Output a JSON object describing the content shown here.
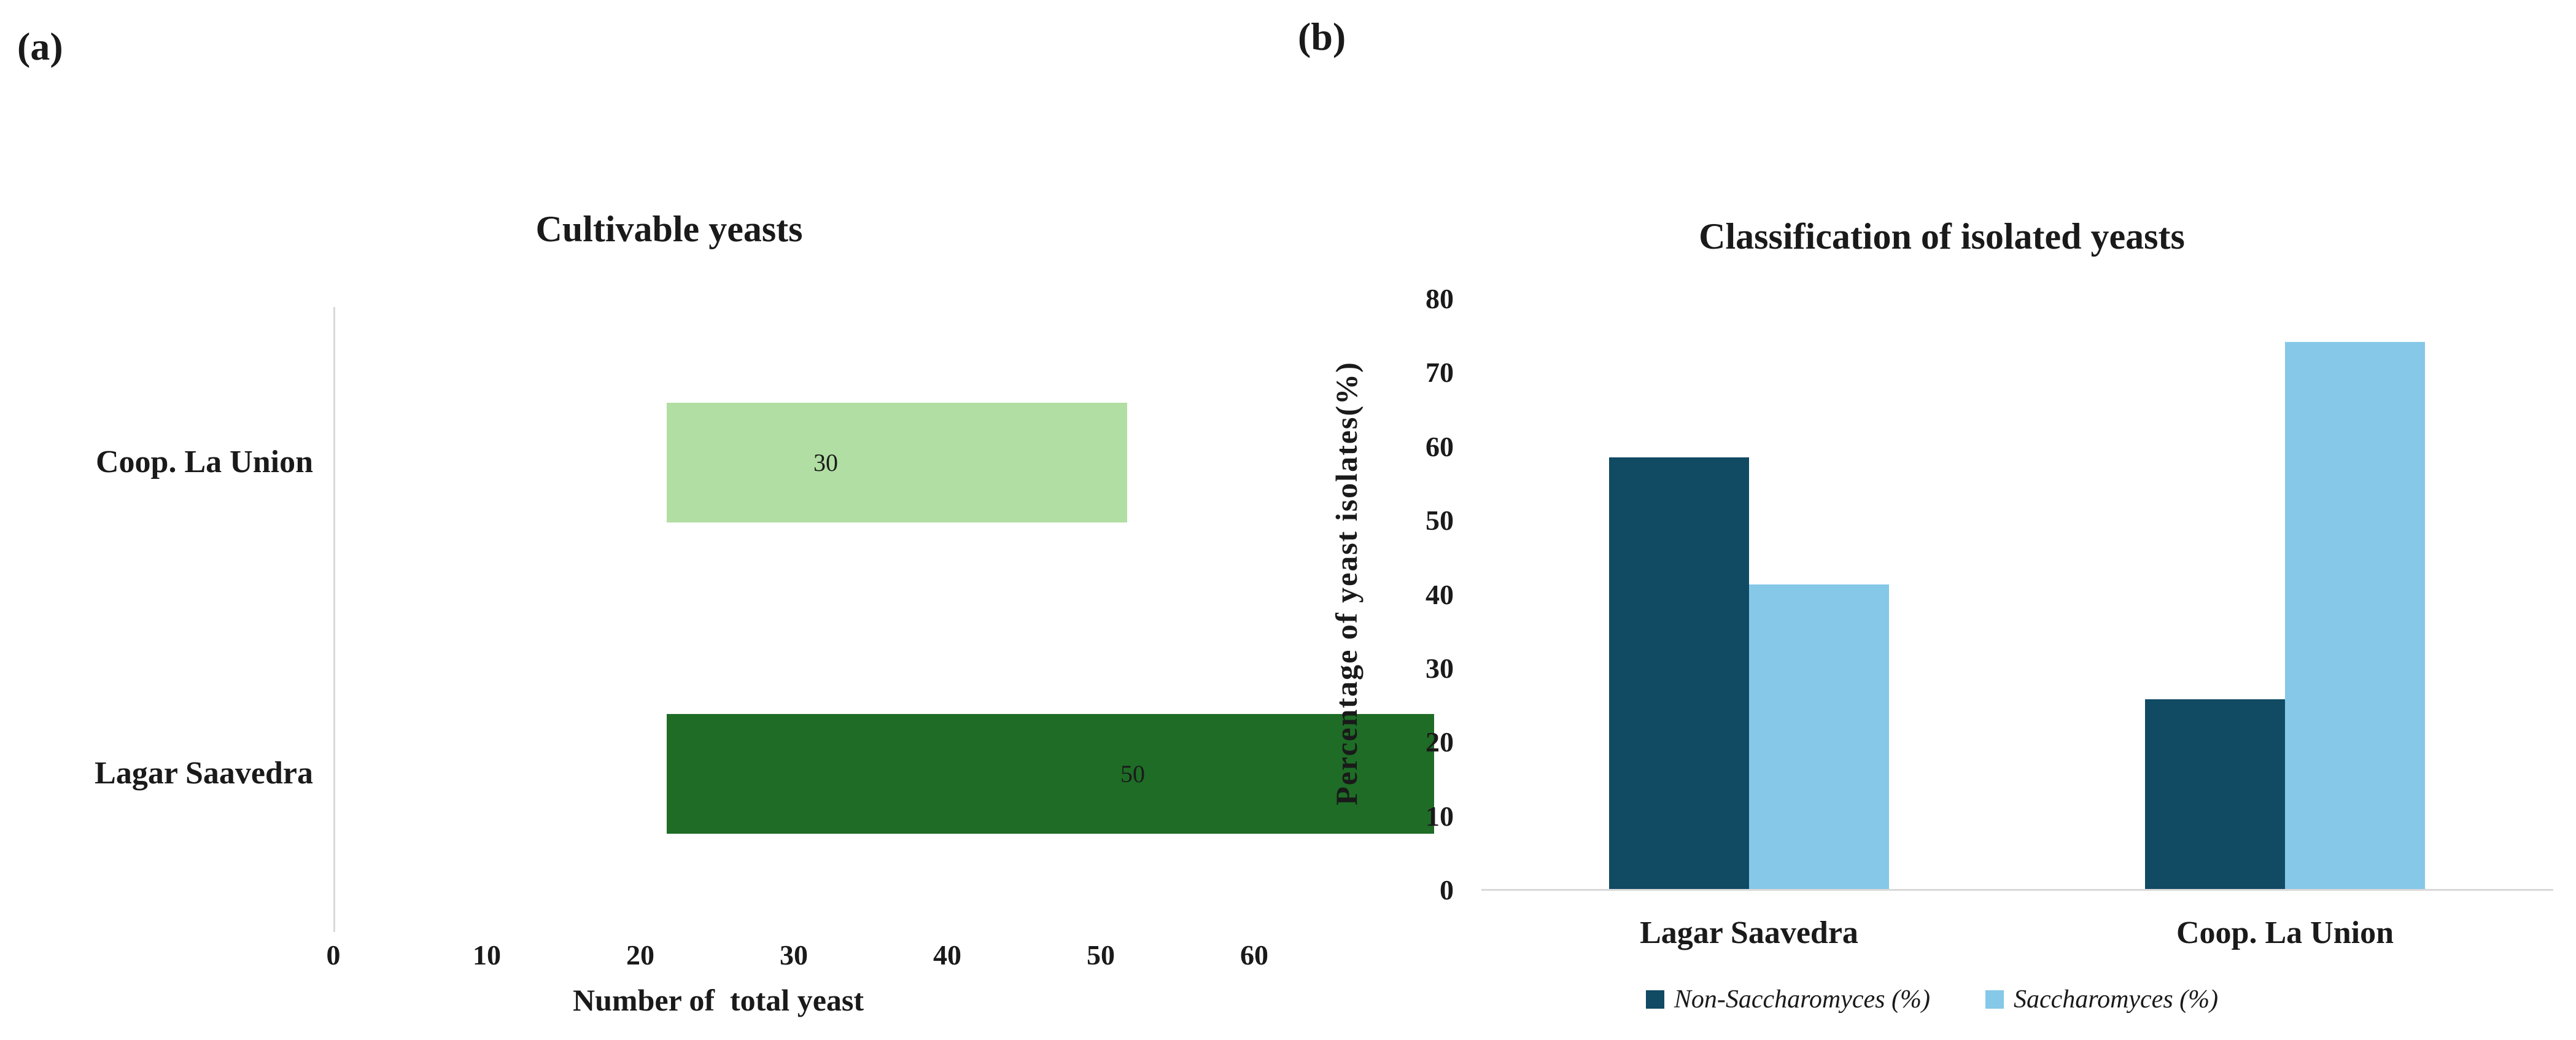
{
  "figure": {
    "panel_a_label": "(a)",
    "panel_b_label": "(b)"
  },
  "colors": {
    "light_green": "#B1DEA2",
    "dark_green": "#1E6C26",
    "dark_teal": "#114A63",
    "light_blue": "#85C8E8",
    "axis_line_gray": "#D9D9D9",
    "text": "#1A1A1A"
  },
  "chart_data": [
    {
      "type": "bar",
      "orientation": "horizontal",
      "title": "Cultivable yeasts",
      "categories": [
        "Coop. La Union",
        "Lagar Saavedra"
      ],
      "values": [
        30,
        50
      ],
      "bar_colors": [
        "#B1DEA2",
        "#1E6C26"
      ],
      "xlabel": "Number of  total yeast",
      "xlim": [
        0,
        60
      ],
      "xticks": [
        0,
        10,
        20,
        30,
        40,
        50,
        60
      ],
      "grid": false,
      "legend": "none",
      "data_labels_shown": true
    },
    {
      "type": "bar",
      "orientation": "vertical",
      "title": "Classification of isolated yeasts",
      "categories": [
        "Lagar Saavedra",
        "Coop. La Union"
      ],
      "series": [
        {
          "name": "Non-Saccharomyces (%)",
          "color": "#114A63",
          "values": [
            58.6,
            25.8
          ]
        },
        {
          "name": "Saccharomyces (%)",
          "color": "#85C8E8",
          "values": [
            41.4,
            74.2
          ]
        }
      ],
      "ylabel": "Percentage of yeast isolates(%)",
      "ylim": [
        0,
        80
      ],
      "yticks": [
        0,
        10,
        20,
        30,
        40,
        50,
        60,
        70,
        80
      ],
      "grid": false,
      "legend_position": "bottom"
    }
  ]
}
